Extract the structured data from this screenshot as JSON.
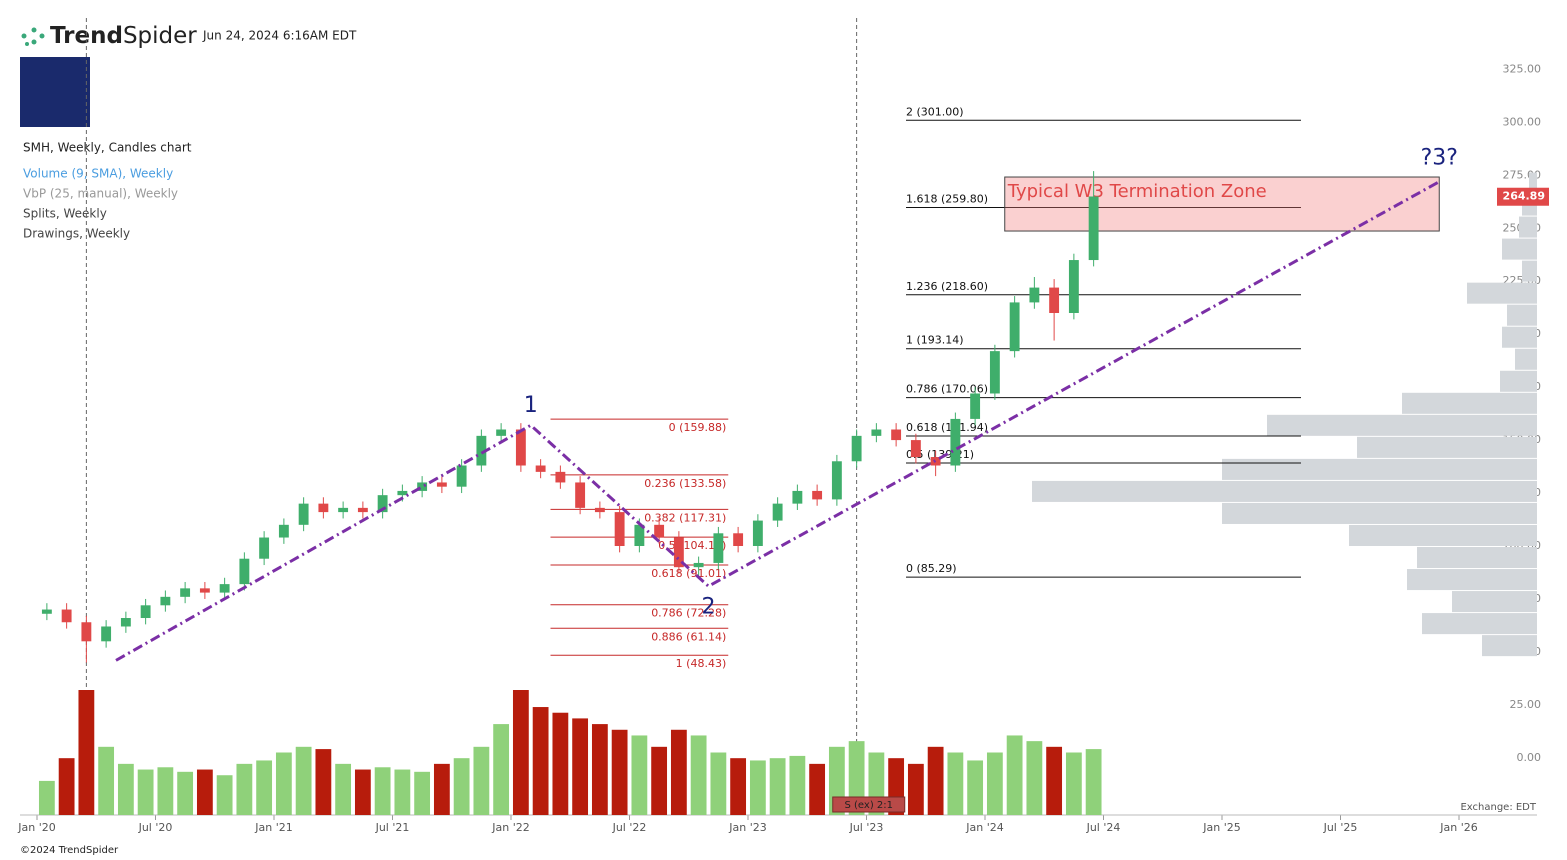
{
  "header": {
    "brand": [
      "Trend",
      "Spider"
    ],
    "timestamp": "Jun 24, 2024 6:16AM EDT"
  },
  "legend": [
    {
      "text": "SMH, Weekly, Candles chart",
      "color": "#222222"
    },
    {
      "text": "Volume (9, SMA), Weekly",
      "color": "#4a9de0"
    },
    {
      "text": "VbP (25, manual), Weekly",
      "color": "#999999"
    },
    {
      "text": "Splits, Weekly",
      "color": "#444444"
    },
    {
      "text": "Drawings, Weekly",
      "color": "#444444"
    }
  ],
  "footer": {
    "copyright": "©2024 TrendSpider",
    "exchange": "Exchange: EDT"
  },
  "chart_data": {
    "type": "candlestick",
    "up_color": "#3fae6b",
    "down_color": "#e04848",
    "volume_up_color": "#8fd17a",
    "volume_down_color": "#b71c0c",
    "x": [
      "2020-01",
      "2020-02",
      "2020-03",
      "2020-04",
      "2020-05",
      "2020-06",
      "2020-07",
      "2020-08",
      "2020-09",
      "2020-10",
      "2020-11",
      "2020-12",
      "2021-01",
      "2021-02",
      "2021-03",
      "2021-04",
      "2021-05",
      "2021-06",
      "2021-07",
      "2021-08",
      "2021-09",
      "2021-10",
      "2021-11",
      "2021-12",
      "2022-01",
      "2022-02",
      "2022-03",
      "2022-04",
      "2022-05",
      "2022-06",
      "2022-07",
      "2022-08",
      "2022-09",
      "2022-10",
      "2022-11",
      "2022-12",
      "2023-01",
      "2023-02",
      "2023-03",
      "2023-04",
      "2023-05",
      "2023-06",
      "2023-07",
      "2023-08",
      "2023-09",
      "2023-10",
      "2023-11",
      "2023-12",
      "2024-01",
      "2024-02",
      "2024-03",
      "2024-04",
      "2024-05",
      "2024-06"
    ],
    "open": [
      68,
      70,
      64,
      55,
      62,
      66,
      72,
      76,
      80,
      78,
      82,
      94,
      104,
      110,
      120,
      116,
      118,
      116,
      124,
      126,
      130,
      128,
      138,
      152,
      155,
      138,
      135,
      130,
      118,
      116,
      100,
      110,
      104,
      90,
      92,
      106,
      100,
      112,
      120,
      126,
      122,
      140,
      152,
      155,
      150,
      142,
      138,
      160,
      172,
      192,
      215,
      222,
      210,
      235
    ],
    "high": [
      73,
      73,
      67,
      65,
      69,
      75,
      79,
      83,
      83,
      85,
      97,
      107,
      113,
      123,
      123,
      121,
      121,
      127,
      129,
      133,
      133,
      141,
      155,
      158,
      158,
      141,
      138,
      133,
      121,
      119,
      113,
      113,
      107,
      95,
      109,
      109,
      115,
      123,
      129,
      129,
      143,
      155,
      158,
      158,
      153,
      145,
      163,
      175,
      195,
      218,
      227,
      226,
      238,
      277
    ],
    "low": [
      65,
      61,
      45,
      52,
      59,
      63,
      69,
      73,
      75,
      75,
      79,
      91,
      101,
      107,
      113,
      113,
      113,
      113,
      121,
      123,
      125,
      125,
      135,
      149,
      135,
      132,
      127,
      115,
      113,
      97,
      97,
      101,
      87,
      85,
      89,
      97,
      97,
      109,
      117,
      119,
      119,
      137,
      149,
      147,
      139,
      133,
      135,
      157,
      169,
      189,
      212,
      197,
      207,
      232
    ],
    "close": [
      70,
      64,
      55,
      62,
      66,
      72,
      76,
      80,
      78,
      82,
      94,
      104,
      110,
      120,
      116,
      118,
      116,
      124,
      126,
      130,
      128,
      138,
      152,
      155,
      138,
      135,
      130,
      118,
      116,
      100,
      110,
      104,
      90,
      92,
      106,
      100,
      112,
      120,
      126,
      122,
      140,
      152,
      155,
      150,
      142,
      138,
      160,
      172,
      192,
      215,
      222,
      210,
      235,
      265
    ],
    "volume": [
      30,
      50,
      110,
      60,
      45,
      40,
      42,
      38,
      40,
      35,
      45,
      48,
      55,
      60,
      58,
      45,
      40,
      42,
      40,
      38,
      45,
      50,
      60,
      80,
      110,
      95,
      90,
      85,
      80,
      75,
      70,
      60,
      75,
      70,
      55,
      50,
      48,
      50,
      52,
      45,
      60,
      65,
      55,
      50,
      45,
      60,
      55,
      48,
      55,
      70,
      65,
      60,
      55,
      58
    ],
    "ylim": [
      -27,
      337
    ],
    "yticks": [
      {
        "value": 0,
        "label": "0.00"
      },
      {
        "value": 25,
        "label": "25.00"
      },
      {
        "value": 50,
        "label": "50.00"
      },
      {
        "value": 75,
        "label": "75.00"
      },
      {
        "value": 100,
        "label": "100.00"
      },
      {
        "value": 125,
        "label": "125.00"
      },
      {
        "value": 150,
        "label": "150.00"
      },
      {
        "value": 175,
        "label": "175.00"
      },
      {
        "value": 200,
        "label": "200.00"
      },
      {
        "value": 225,
        "label": "225.00"
      },
      {
        "value": 250,
        "label": "250.00"
      },
      {
        "value": 275,
        "label": "275.00"
      },
      {
        "value": 300,
        "label": "300.00"
      },
      {
        "value": 325,
        "label": "325.00"
      }
    ],
    "xticks": [
      {
        "value": "2020-01",
        "label": "Jan '20"
      },
      {
        "value": "2020-07",
        "label": "Jul '20"
      },
      {
        "value": "2021-01",
        "label": "Jan '21"
      },
      {
        "value": "2021-07",
        "label": "Jul '21"
      },
      {
        "value": "2022-01",
        "label": "Jan '22"
      },
      {
        "value": "2022-07",
        "label": "Jul '22"
      },
      {
        "value": "2023-01",
        "label": "Jan '23"
      },
      {
        "value": "2023-07",
        "label": "Jul '23"
      },
      {
        "value": "2024-01",
        "label": "Jan '24"
      },
      {
        "value": "2024-07",
        "label": "Jul '24"
      },
      {
        "value": "2025-01",
        "label": "Jan '25"
      },
      {
        "value": "2025-07",
        "label": "Jul '25"
      },
      {
        "value": "2026-01",
        "label": "Jan '26"
      }
    ],
    "last_price": 264.89,
    "last_price_color": "#e04848",
    "fib_sets": [
      {
        "x": [
          "2022-03",
          "2022-12"
        ],
        "color": "#c62828",
        "levels": [
          {
            "value": 159.88,
            "label": "0 (159.88)"
          },
          {
            "value": 133.58,
            "label": "0.236 (133.58)"
          },
          {
            "value": 117.31,
            "label": "0.382 (117.31)"
          },
          {
            "value": 104.16,
            "label": "0.5 (104.16)"
          },
          {
            "value": 91.01,
            "label": "0.618 (91.01)"
          },
          {
            "value": 72.28,
            "label": "0.786 (72.28)"
          },
          {
            "value": 61.14,
            "label": "0.886 (61.14)"
          },
          {
            "value": 48.43,
            "label": "1 (48.43)"
          }
        ]
      },
      {
        "x": [
          "2023-09",
          "2025-05"
        ],
        "color": "#111111",
        "levels": [
          {
            "value": 301.0,
            "label": "2 (301.00)"
          },
          {
            "value": 259.8,
            "label": "1.618 (259.80)"
          },
          {
            "value": 218.6,
            "label": "1.236 (218.60)"
          },
          {
            "value": 193.14,
            "label": "1 (193.14)"
          },
          {
            "value": 170.06,
            "label": "0.786 (170.06)"
          },
          {
            "value": 151.94,
            "label": "0.618 (151.94)"
          },
          {
            "value": 139.21,
            "label": "0.5 (139.21)"
          },
          {
            "value": 85.29,
            "label": "0 (85.29)"
          }
        ]
      }
    ],
    "trendline": {
      "color": "#7b2fa6",
      "points": [
        [
          "2020-05",
          46
        ],
        [
          "2022-02",
          157
        ],
        [
          "2022-11",
          81
        ],
        [
          "2025-12",
          272
        ]
      ]
    },
    "wave_labels": [
      {
        "text": "1",
        "x": "2022-02",
        "y": 166
      },
      {
        "text": "2",
        "x": "2022-11",
        "y": 71
      },
      {
        "text": "?3?",
        "x": "2025-12",
        "y": 283
      }
    ],
    "zone": {
      "label": "Typical W3 Termination Zone",
      "x": [
        "2024-02",
        "2025-12"
      ],
      "y": [
        248.7,
        274.2
      ]
    },
    "vbp": {
      "color": "#d3d7db",
      "bins": [
        48,
        58.4,
        68.8,
        79.2,
        89.6,
        100,
        110.4,
        120.8,
        131.2,
        141.6,
        152,
        162.4,
        172.8,
        183.2,
        193.6,
        204,
        214.4,
        224.8,
        235.2,
        245.6,
        256,
        266.4,
        276.8
      ],
      "values": [
        55,
        115,
        85,
        130,
        120,
        188,
        315,
        505,
        315,
        180,
        270,
        135,
        37,
        22,
        35,
        30,
        70,
        15,
        35,
        18,
        15,
        8
      ]
    },
    "vlines": [
      "2020-03",
      "2023-06"
    ],
    "manual_label": "manual",
    "split_label": "S (ex) 2:1"
  }
}
